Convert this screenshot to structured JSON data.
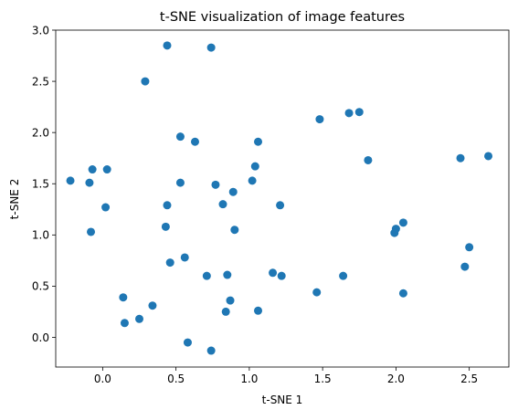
{
  "chart_data": {
    "type": "scatter",
    "title": "t-SNE visualization of image features",
    "xlabel": "t-SNE 1",
    "ylabel": "t-SNE 2",
    "xlim": [
      -0.32,
      2.77
    ],
    "ylim": [
      -0.29,
      3.0
    ],
    "xticks": [
      0.0,
      0.5,
      1.0,
      1.5,
      2.0,
      2.5
    ],
    "xtick_labels": [
      "0.0",
      "0.5",
      "1.0",
      "1.5",
      "2.0",
      "2.5"
    ],
    "yticks": [
      0.0,
      0.5,
      1.0,
      1.5,
      2.0,
      2.5,
      3.0
    ],
    "ytick_labels": [
      "0.0",
      "0.5",
      "1.0",
      "1.5",
      "2.0",
      "2.5",
      "3.0"
    ],
    "grid": false,
    "marker_color": "#1f77b4",
    "points": [
      {
        "x": 0.44,
        "y": 2.85
      },
      {
        "x": 0.74,
        "y": 2.83
      },
      {
        "x": 0.29,
        "y": 2.5
      },
      {
        "x": 1.48,
        "y": 2.13
      },
      {
        "x": 1.68,
        "y": 2.19
      },
      {
        "x": 1.75,
        "y": 2.2
      },
      {
        "x": 0.53,
        "y": 1.96
      },
      {
        "x": 0.63,
        "y": 1.91
      },
      {
        "x": 1.06,
        "y": 1.91
      },
      {
        "x": 1.04,
        "y": 1.67
      },
      {
        "x": 1.81,
        "y": 1.73
      },
      {
        "x": 2.44,
        "y": 1.75
      },
      {
        "x": 2.63,
        "y": 1.77
      },
      {
        "x": -0.22,
        "y": 1.53
      },
      {
        "x": -0.09,
        "y": 1.51
      },
      {
        "x": -0.07,
        "y": 1.64
      },
      {
        "x": 0.03,
        "y": 1.64
      },
      {
        "x": 0.53,
        "y": 1.51
      },
      {
        "x": 0.77,
        "y": 1.49
      },
      {
        "x": 0.89,
        "y": 1.42
      },
      {
        "x": 1.02,
        "y": 1.53
      },
      {
        "x": 0.44,
        "y": 1.29
      },
      {
        "x": 0.82,
        "y": 1.3
      },
      {
        "x": 1.21,
        "y": 1.29
      },
      {
        "x": 0.02,
        "y": 1.27
      },
      {
        "x": -0.08,
        "y": 1.03
      },
      {
        "x": 0.43,
        "y": 1.08
      },
      {
        "x": 0.9,
        "y": 1.05
      },
      {
        "x": 2.0,
        "y": 1.06
      },
      {
        "x": 2.05,
        "y": 1.12
      },
      {
        "x": 1.99,
        "y": 1.02
      },
      {
        "x": 2.5,
        "y": 0.88
      },
      {
        "x": 2.47,
        "y": 0.69
      },
      {
        "x": 0.46,
        "y": 0.73
      },
      {
        "x": 0.56,
        "y": 0.78
      },
      {
        "x": 0.71,
        "y": 0.6
      },
      {
        "x": 0.85,
        "y": 0.61
      },
      {
        "x": 1.16,
        "y": 0.63
      },
      {
        "x": 1.22,
        "y": 0.6
      },
      {
        "x": 1.64,
        "y": 0.6
      },
      {
        "x": 1.46,
        "y": 0.44
      },
      {
        "x": 2.05,
        "y": 0.43
      },
      {
        "x": 0.14,
        "y": 0.39
      },
      {
        "x": 0.34,
        "y": 0.31
      },
      {
        "x": 0.87,
        "y": 0.36
      },
      {
        "x": 0.84,
        "y": 0.25
      },
      {
        "x": 1.06,
        "y": 0.26
      },
      {
        "x": 0.25,
        "y": 0.18
      },
      {
        "x": 0.15,
        "y": 0.14
      },
      {
        "x": 0.58,
        "y": -0.05
      },
      {
        "x": 0.74,
        "y": -0.13
      }
    ]
  }
}
